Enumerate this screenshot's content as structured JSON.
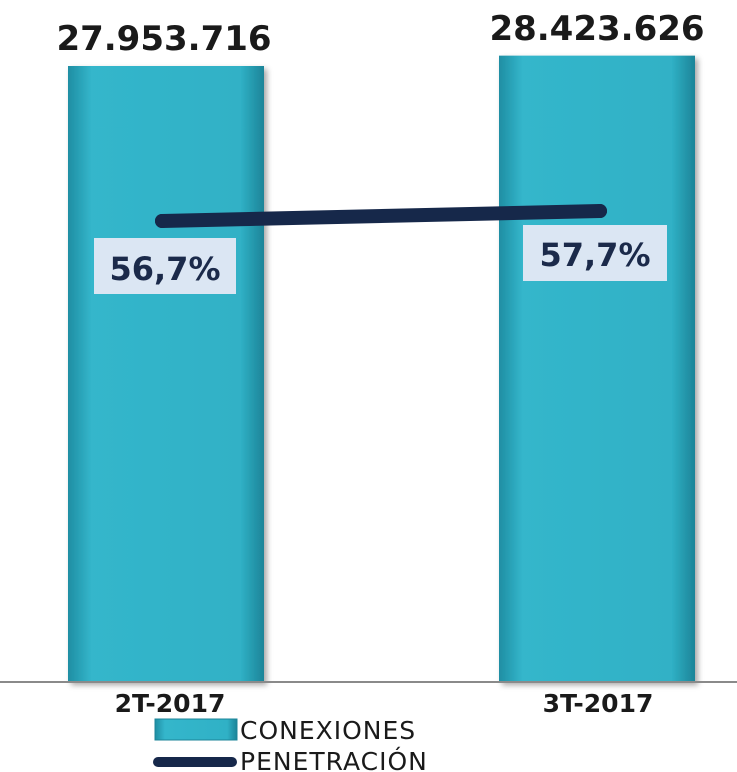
{
  "chart_data": {
    "type": "bar",
    "categories": [
      "2T-2017",
      "3T-2017"
    ],
    "series": [
      {
        "name": "CONEXIONES",
        "type": "bar",
        "values": [
          27953716,
          28423626
        ],
        "labels": [
          "27.953.716",
          "28.423.626"
        ],
        "color": "#2fb0c6"
      },
      {
        "name": "PENETRACIÓN",
        "type": "line",
        "values": [
          56.7,
          57.7
        ],
        "labels": [
          "56,7%",
          "57,7%"
        ],
        "color": "#16284a"
      }
    ],
    "label_box_color": "#dbe6f3",
    "grid": false,
    "legend_position": "bottom-center"
  }
}
